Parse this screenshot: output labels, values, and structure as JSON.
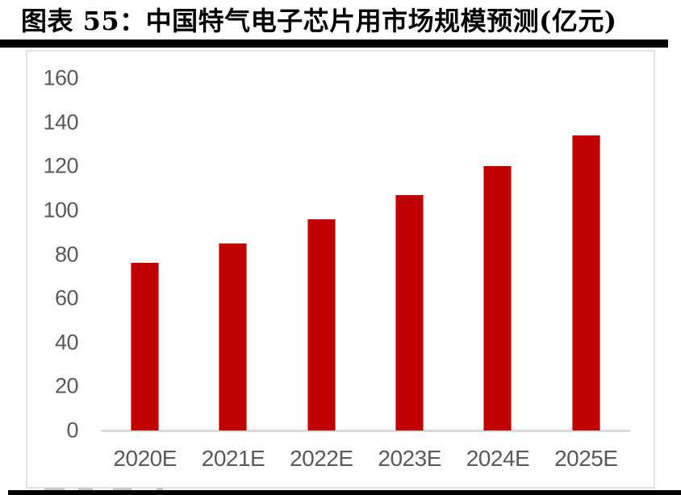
{
  "header": {
    "title": "图表 55：中国特气电子芯片用市场规模预测(亿元)"
  },
  "colors": {
    "bar": "#c00000",
    "axis_text": "#595959",
    "axis_line": "#d9d9d9",
    "frame_border": "#e3e3e3",
    "rule": "#000000"
  },
  "chart_data": {
    "type": "bar",
    "title": "中国特气电子芯片用市场规模预测",
    "unit_label": "亿元",
    "categories": [
      "2020E",
      "2021E",
      "2022E",
      "2023E",
      "2024E",
      "2025E"
    ],
    "values": [
      76,
      85,
      96,
      107,
      120,
      134
    ],
    "xlabel": "",
    "ylabel": "",
    "ylim": [
      0,
      160
    ],
    "yticks": [
      0,
      20,
      40,
      60,
      80,
      100,
      120,
      140,
      160
    ],
    "grid": false,
    "legend": "none",
    "bar_color": "#c00000"
  }
}
